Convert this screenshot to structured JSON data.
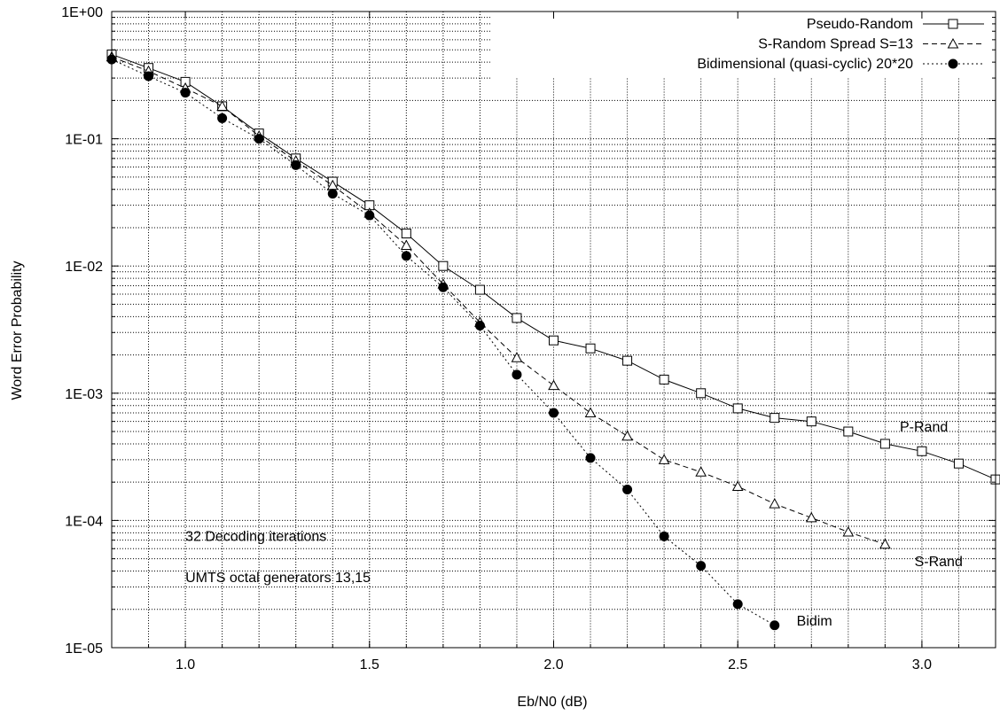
{
  "chart_data": {
    "type": "line",
    "xlabel": "Eb/N0 (dB)",
    "ylabel": "Word Error Probability",
    "xlim": [
      0.8,
      3.2
    ],
    "ylim": [
      1e-05,
      1
    ],
    "y_scale": "log",
    "grid": true,
    "legend_position": "top-right",
    "x_ticks": [
      "1.0",
      "1.5",
      "2.0",
      "2.5",
      "3.0"
    ],
    "y_ticks": [
      "1E-05",
      "1E-04",
      "1E-03",
      "1E-02",
      "1E-01",
      "1E+00"
    ],
    "series": [
      {
        "name": "Pseudo-Random",
        "marker": "open-square",
        "line": "solid",
        "x": [
          0.8,
          0.9,
          1.0,
          1.1,
          1.2,
          1.3,
          1.4,
          1.5,
          1.6,
          1.7,
          1.8,
          1.9,
          2.0,
          2.1,
          2.2,
          2.3,
          2.4,
          2.5,
          2.6,
          2.7,
          2.8,
          2.9,
          3.0,
          3.1,
          3.2
        ],
        "y": [
          0.46,
          0.36,
          0.28,
          0.18,
          0.11,
          0.07,
          0.046,
          0.03,
          0.018,
          0.01,
          0.0065,
          0.0039,
          0.0026,
          0.00225,
          0.0018,
          0.00128,
          0.001,
          0.00076,
          0.00064,
          0.0006,
          0.0005,
          0.0004,
          0.00035,
          0.00028,
          0.00021
        ]
      },
      {
        "name": "S-Random Spread S=13",
        "marker": "open-triangle",
        "line": "dashed",
        "x": [
          0.8,
          0.9,
          1.0,
          1.1,
          1.2,
          1.3,
          1.4,
          1.5,
          1.6,
          1.7,
          1.8,
          1.9,
          2.0,
          2.1,
          2.2,
          2.3,
          2.4,
          2.5,
          2.6,
          2.7,
          2.8,
          2.9
        ],
        "y": [
          0.44,
          0.34,
          0.25,
          0.18,
          0.105,
          0.067,
          0.043,
          0.026,
          0.0145,
          0.0072,
          0.0036,
          0.0019,
          0.00115,
          0.0007,
          0.00046,
          0.0003,
          0.00024,
          0.000185,
          0.000135,
          0.000105,
          8.1e-05,
          6.5e-05
        ]
      },
      {
        "name": "Bidimensional (quasi-cyclic) 20*20",
        "marker": "filled-circle",
        "line": "dotted",
        "x": [
          0.8,
          0.9,
          1.0,
          1.1,
          1.2,
          1.3,
          1.4,
          1.5,
          1.6,
          1.7,
          1.8,
          1.9,
          2.0,
          2.1,
          2.2,
          2.3,
          2.4,
          2.5,
          2.6
        ],
        "y": [
          0.42,
          0.31,
          0.23,
          0.145,
          0.1,
          0.062,
          0.037,
          0.025,
          0.012,
          0.0068,
          0.0034,
          0.0014,
          0.0007,
          0.00031,
          0.000175,
          7.5e-05,
          4.4e-05,
          2.2e-05,
          1.5e-05
        ]
      }
    ],
    "annotations": [
      {
        "text": "P-Rand",
        "x": 2.94,
        "y": 0.00055
      },
      {
        "text": "S-Rand",
        "x": 2.98,
        "y": 4.8e-05
      },
      {
        "text": "Bidim",
        "x": 2.66,
        "y": 1.65e-05
      },
      {
        "text": "32 Decoding iterations",
        "x": 1.0,
        "y": 7.6e-05
      },
      {
        "text": "UMTS octal generators 13,15",
        "x": 1.0,
        "y": 3.6e-05
      }
    ]
  }
}
